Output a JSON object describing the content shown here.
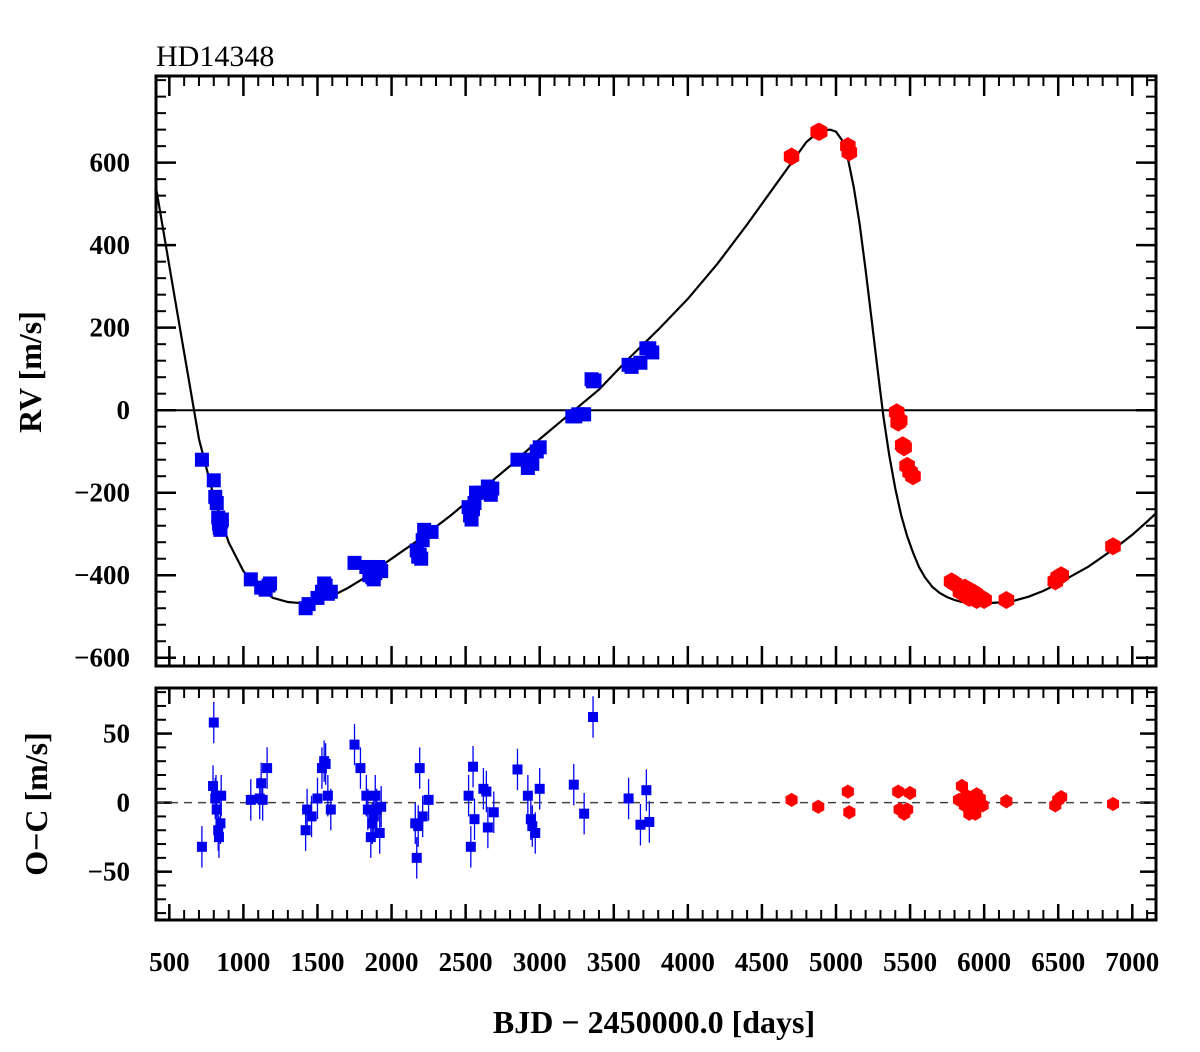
{
  "chart_data": [
    {
      "type": "scatter",
      "name": "rv",
      "title": "HD14348",
      "xlabel": "BJD − 2450000.0 [days]",
      "ylabel": "RV [m/s]",
      "xlim": [
        410,
        7160
      ],
      "ylim": [
        -620,
        810
      ],
      "x_ticks": [
        500,
        1000,
        1500,
        2000,
        2500,
        3000,
        3500,
        4000,
        4500,
        5000,
        5500,
        6000,
        6500,
        7000
      ],
      "y_ticks": [
        -600,
        -400,
        -200,
        0,
        200,
        400,
        600
      ],
      "y_tick_labels": [
        "−600",
        "−400",
        "−200",
        "0",
        "200",
        "400",
        "600"
      ],
      "zero_line": 0,
      "model_curve": {
        "name": "Keplerian fit",
        "color": "#000000",
        "x": [
          410,
          500,
          600,
          700,
          800,
          900,
          1000,
          1100,
          1200,
          1300,
          1400,
          1500,
          1600,
          1700,
          1800,
          1900,
          2000,
          2200,
          2400,
          2600,
          2800,
          3000,
          3200,
          3400,
          3600,
          3800,
          4000,
          4200,
          4400,
          4600,
          4700,
          4800,
          4860,
          4920,
          4960,
          5000,
          5040,
          5080,
          5120,
          5160,
          5200,
          5240,
          5280,
          5320,
          5360,
          5400,
          5440,
          5480,
          5520,
          5560,
          5600,
          5650,
          5700,
          5750,
          5800,
          5850,
          5900,
          5950,
          6000,
          6050,
          6100,
          6150,
          6200,
          6300,
          6400,
          6500,
          6600,
          6700,
          6800,
          6900,
          7000,
          7100,
          7160
        ],
        "y": [
          540,
          350,
          140,
          -70,
          -210,
          -320,
          -390,
          -430,
          -455,
          -465,
          -468,
          -462,
          -450,
          -432,
          -410,
          -385,
          -360,
          -310,
          -255,
          -195,
          -135,
          -70,
          -10,
          50,
          125,
          195,
          270,
          355,
          450,
          550,
          600,
          650,
          668,
          678,
          680,
          675,
          655,
          610,
          540,
          450,
          340,
          220,
          100,
          -15,
          -110,
          -190,
          -255,
          -305,
          -345,
          -380,
          -405,
          -428,
          -443,
          -453,
          -460,
          -465,
          -467,
          -468,
          -468,
          -467,
          -466,
          -464,
          -462,
          -452,
          -438,
          -420,
          -400,
          -380,
          -355,
          -330,
          -302,
          -270,
          -250
        ]
      },
      "series": [
        {
          "name": "blue-dataset",
          "marker": "square",
          "color": "#0000ee",
          "x": [
            720,
            800,
            810,
            820,
            830,
            835,
            840,
            845,
            850,
            855,
            1050,
            1120,
            1150,
            1170,
            1180,
            1420,
            1440,
            1500,
            1530,
            1545,
            1555,
            1570,
            1590,
            1750,
            1830,
            1850,
            1870,
            1880,
            1890,
            1910,
            1920,
            1930,
            2170,
            2180,
            2190,
            2200,
            2210,
            2220,
            2270,
            2520,
            2530,
            2540,
            2550,
            2560,
            2570,
            2600,
            2650,
            2670,
            2680,
            2850,
            2920,
            2930,
            2950,
            2980,
            3000,
            3220,
            3240,
            3260,
            3290,
            3300,
            3350,
            3360,
            3370,
            3600,
            3620,
            3680,
            3720,
            3740,
            3760
          ],
          "y": [
            -120,
            -170,
            -210,
            -225,
            -260,
            -275,
            -285,
            -290,
            -270,
            -265,
            -410,
            -430,
            -435,
            -425,
            -420,
            -480,
            -470,
            -455,
            -440,
            -420,
            -425,
            -445,
            -440,
            -370,
            -380,
            -400,
            -405,
            -410,
            -395,
            -380,
            -385,
            -390,
            -340,
            -355,
            -350,
            -360,
            -315,
            -290,
            -295,
            -235,
            -255,
            -265,
            -240,
            -225,
            -200,
            -200,
            -185,
            -205,
            -190,
            -120,
            -140,
            -120,
            -130,
            -100,
            -90,
            -15,
            -15,
            -10,
            -10,
            -10,
            75,
            70,
            72,
            110,
            105,
            115,
            150,
            150,
            140
          ]
        },
        {
          "name": "red-dataset",
          "marker": "hexagon",
          "color": "#ff0000",
          "x": [
            4700,
            4880,
            4890,
            5080,
            5090,
            5410,
            5420,
            5430,
            5450,
            5460,
            5480,
            5500,
            5520,
            5780,
            5800,
            5840,
            5870,
            5880,
            5900,
            5920,
            5940,
            5950,
            5970,
            5980,
            6000,
            6150,
            6480,
            6500,
            6520,
            6870
          ],
          "y": [
            615,
            675,
            675,
            640,
            625,
            -5,
            -30,
            -25,
            -85,
            -90,
            -135,
            -150,
            -160,
            -415,
            -420,
            -440,
            -430,
            -450,
            -455,
            -440,
            -445,
            -460,
            -455,
            -455,
            -460,
            -460,
            -415,
            -405,
            -400,
            -330
          ]
        }
      ]
    },
    {
      "type": "scatter",
      "name": "residuals",
      "xlabel": "BJD − 2450000.0 [days]",
      "ylabel": "O−C [m/s]",
      "xlim": [
        410,
        7160
      ],
      "ylim": [
        -85,
        83
      ],
      "x_ticks": [
        500,
        1000,
        1500,
        2000,
        2500,
        3000,
        3500,
        4000,
        4500,
        5000,
        5500,
        6000,
        6500,
        7000
      ],
      "x_tick_labels": [
        "500",
        "1000",
        "1500",
        "2000",
        "2500",
        "3000",
        "3500",
        "4000",
        "4500",
        "5000",
        "5500",
        "6000",
        "6500",
        "7000"
      ],
      "y_ticks": [
        -50,
        0,
        50
      ],
      "y_tick_labels": [
        "−50",
        "0",
        "50"
      ],
      "zero_line": 0,
      "series": [
        {
          "name": "blue-dataset",
          "marker": "square",
          "color": "#0000ee",
          "errors": 15,
          "x": [
            720,
            795,
            800,
            810,
            815,
            820,
            830,
            835,
            845,
            850,
            1050,
            1110,
            1120,
            1130,
            1160,
            1420,
            1430,
            1460,
            1500,
            1530,
            1545,
            1555,
            1570,
            1590,
            1750,
            1790,
            1830,
            1840,
            1860,
            1870,
            1880,
            1890,
            1900,
            1920,
            1930,
            2160,
            2170,
            2180,
            2190,
            2210,
            2250,
            2520,
            2535,
            2550,
            2560,
            2620,
            2640,
            2650,
            2690,
            2850,
            2920,
            2940,
            2950,
            2970,
            3000,
            3230,
            3300,
            3360,
            3600,
            3680,
            3720,
            3740
          ],
          "y": [
            -32,
            12,
            58,
            3,
            5,
            -5,
            -20,
            -25,
            -15,
            5,
            2,
            3,
            14,
            2,
            25,
            -20,
            -5,
            -10,
            3,
            25,
            30,
            28,
            5,
            -5,
            42,
            25,
            5,
            -5,
            -25,
            -15,
            -10,
            5,
            -5,
            -22,
            -3,
            -15,
            -40,
            -17,
            25,
            -10,
            2,
            5,
            -32,
            26,
            -12,
            10,
            8,
            -18,
            -7,
            24,
            5,
            -12,
            -17,
            -22,
            10,
            13,
            -8,
            62,
            3,
            -16,
            9,
            -14
          ]
        },
        {
          "name": "red-dataset",
          "marker": "hexagon",
          "color": "#ff0000",
          "errors": 5,
          "x": [
            4700,
            4880,
            5080,
            5090,
            5420,
            5430,
            5460,
            5480,
            5500,
            5830,
            5850,
            5870,
            5880,
            5900,
            5910,
            5920,
            5930,
            5940,
            5950,
            5970,
            5990,
            6150,
            6480,
            6500,
            6520,
            6870
          ],
          "y": [
            2,
            -3,
            8,
            -7,
            8,
            -5,
            -8,
            -5,
            7,
            2,
            12,
            -2,
            5,
            -8,
            -3,
            0,
            -5,
            -8,
            6,
            3,
            -2,
            1,
            -2,
            2,
            4,
            -1
          ]
        }
      ]
    }
  ]
}
